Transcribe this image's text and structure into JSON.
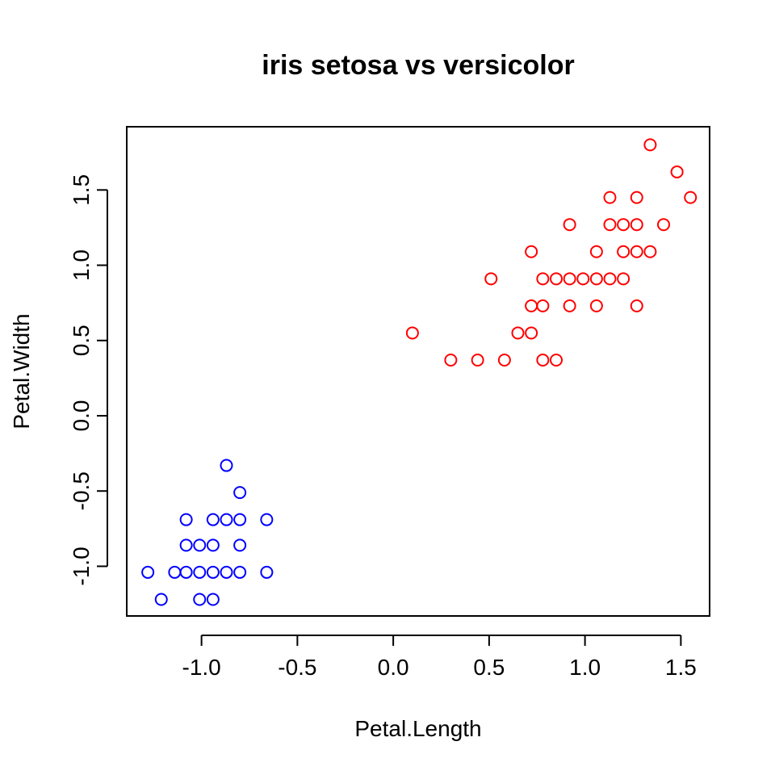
{
  "chart_data": {
    "type": "scatter",
    "title": "iris setosa vs versicolor",
    "xlabel": "Petal.Length",
    "ylabel": "Petal.Width",
    "xlim": [
      -1.39,
      1.65
    ],
    "ylim": [
      -1.33,
      1.92
    ],
    "x_ticks": [
      -1.0,
      -0.5,
      0.0,
      0.5,
      1.0,
      1.5
    ],
    "x_tick_labels": [
      "-1.0",
      "-0.5",
      "0.0",
      "0.5",
      "1.0",
      "1.5"
    ],
    "y_ticks": [
      -1.0,
      -0.5,
      0.0,
      0.5,
      1.0,
      1.5
    ],
    "y_tick_labels": [
      "-1.0",
      "-0.5",
      "0.0",
      "0.5",
      "1.0",
      "1.5"
    ],
    "grid": false,
    "legend": "none",
    "series": [
      {
        "color": "#0000ff",
        "marker": "open-circle",
        "points": [
          [
            -1.28,
            -1.04
          ],
          [
            -1.21,
            -1.22
          ],
          [
            -1.14,
            -1.04
          ],
          [
            -1.08,
            -1.04
          ],
          [
            -1.08,
            -0.86
          ],
          [
            -1.08,
            -0.69
          ],
          [
            -1.01,
            -1.04
          ],
          [
            -1.01,
            -0.86
          ],
          [
            -1.01,
            -1.22
          ],
          [
            -0.94,
            -1.04
          ],
          [
            -0.94,
            -0.86
          ],
          [
            -0.94,
            -0.69
          ],
          [
            -0.94,
            -1.22
          ],
          [
            -0.87,
            -1.04
          ],
          [
            -0.87,
            -0.69
          ],
          [
            -0.87,
            -0.33
          ],
          [
            -0.8,
            -1.04
          ],
          [
            -0.8,
            -0.86
          ],
          [
            -0.8,
            -0.69
          ],
          [
            -0.8,
            -0.51
          ],
          [
            -0.66,
            -1.04
          ],
          [
            -0.66,
            -0.69
          ]
        ]
      },
      {
        "color": "#ff0000",
        "marker": "open-circle",
        "points": [
          [
            0.1,
            0.55
          ],
          [
            0.3,
            0.37
          ],
          [
            0.44,
            0.37
          ],
          [
            0.51,
            0.91
          ],
          [
            0.58,
            0.37
          ],
          [
            0.65,
            0.55
          ],
          [
            0.72,
            0.55
          ],
          [
            0.72,
            0.73
          ],
          [
            0.72,
            1.09
          ],
          [
            0.78,
            0.37
          ],
          [
            0.78,
            0.73
          ],
          [
            0.78,
            0.91
          ],
          [
            0.85,
            0.37
          ],
          [
            0.85,
            0.91
          ],
          [
            0.92,
            0.73
          ],
          [
            0.92,
            0.91
          ],
          [
            0.92,
            1.27
          ],
          [
            0.99,
            0.91
          ],
          [
            1.06,
            0.73
          ],
          [
            1.06,
            0.91
          ],
          [
            1.06,
            1.09
          ],
          [
            1.13,
            0.91
          ],
          [
            1.13,
            1.27
          ],
          [
            1.13,
            1.45
          ],
          [
            1.2,
            0.91
          ],
          [
            1.2,
            1.09
          ],
          [
            1.2,
            1.27
          ],
          [
            1.27,
            0.73
          ],
          [
            1.27,
            1.09
          ],
          [
            1.27,
            1.27
          ],
          [
            1.27,
            1.45
          ],
          [
            1.34,
            1.09
          ],
          [
            1.34,
            1.8
          ],
          [
            1.41,
            1.27
          ],
          [
            1.48,
            1.62
          ],
          [
            1.55,
            1.45
          ]
        ]
      }
    ]
  }
}
